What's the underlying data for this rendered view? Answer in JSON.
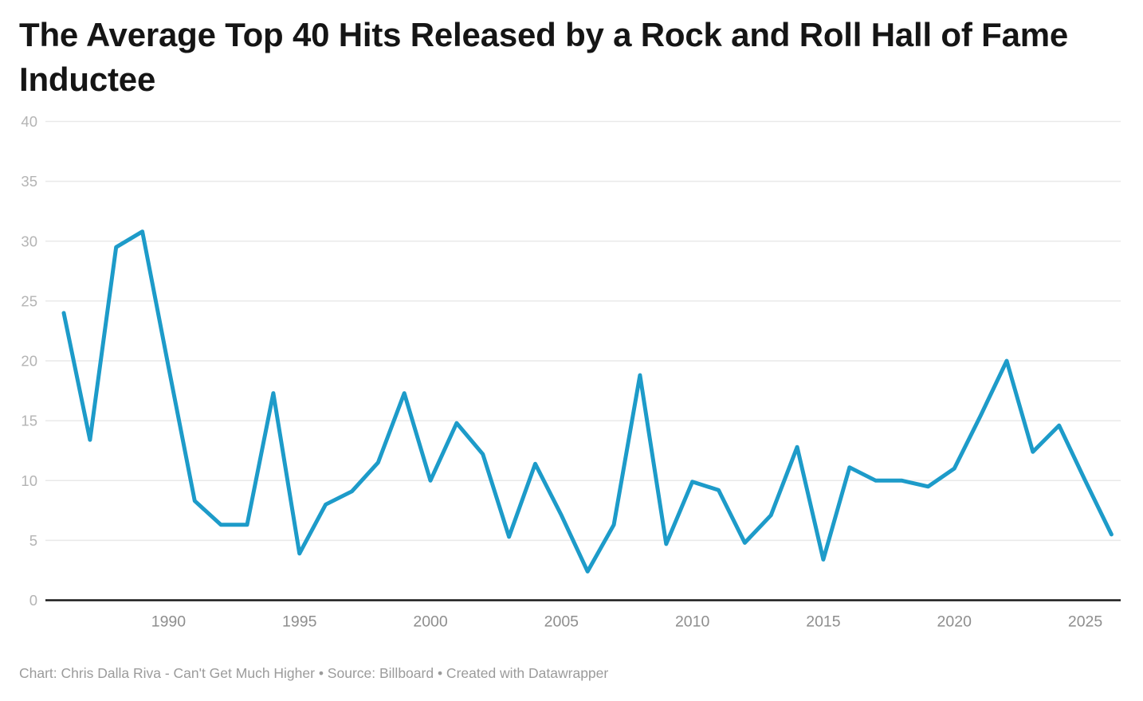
{
  "title": "The Average Top 40 Hits Released by a Rock and Roll Hall of Fame Inductee",
  "footer": "Chart: Chris Dalla Riva - Can't Get Much Higher • Source: Billboard • Created with Datawrapper",
  "colors": {
    "background": "#ffffff",
    "title": "#151515",
    "line": "#1d9bc9",
    "gridline": "#e9e9e9",
    "axis": "#1a1a1a",
    "y_tick_label": "#b4b4b4",
    "x_tick_label": "#8e8e8e",
    "footer": "#9b9b9b"
  },
  "chart_data": {
    "type": "line",
    "title": "The Average Top 40 Hits Released by a Rock and Roll Hall of Fame Inductee",
    "xlabel": "",
    "ylabel": "",
    "source_note": "Chart: Chris Dalla Riva - Can't Get Much Higher • Source: Billboard • Created with Datawrapper",
    "grid": true,
    "legend": false,
    "line_color": "#1d9bc9",
    "xlim": [
      1985.3,
      2026.4
    ],
    "ylim": [
      0,
      40
    ],
    "xticks": [
      1990,
      1995,
      2000,
      2005,
      2010,
      2015,
      2020,
      2025
    ],
    "yticks": [
      0,
      5,
      10,
      15,
      20,
      25,
      30,
      35,
      40
    ],
    "x": [
      1986,
      1987,
      1988,
      1989,
      1990,
      1991,
      1992,
      1993,
      1994,
      1995,
      1996,
      1997,
      1998,
      1999,
      2000,
      2001,
      2002,
      2003,
      2004,
      2005,
      2006,
      2007,
      2008,
      2009,
      2010,
      2011,
      2012,
      2013,
      2014,
      2015,
      2016,
      2017,
      2018,
      2019,
      2020,
      2021,
      2022,
      2023,
      2024,
      2025,
      2026
    ],
    "values": [
      24,
      13.4,
      29.5,
      30.8,
      19.5,
      8.3,
      6.3,
      6.3,
      17.3,
      3.9,
      8,
      9.1,
      11.5,
      17.3,
      10,
      14.8,
      12.2,
      5.3,
      11.4,
      7.1,
      2.4,
      6.3,
      18.8,
      4.7,
      9.9,
      9.2,
      4.8,
      7.1,
      12.8,
      3.4,
      11.1,
      10,
      10,
      9.5,
      11,
      15.4,
      20,
      12.4,
      14.6,
      10,
      5.5
    ]
  }
}
